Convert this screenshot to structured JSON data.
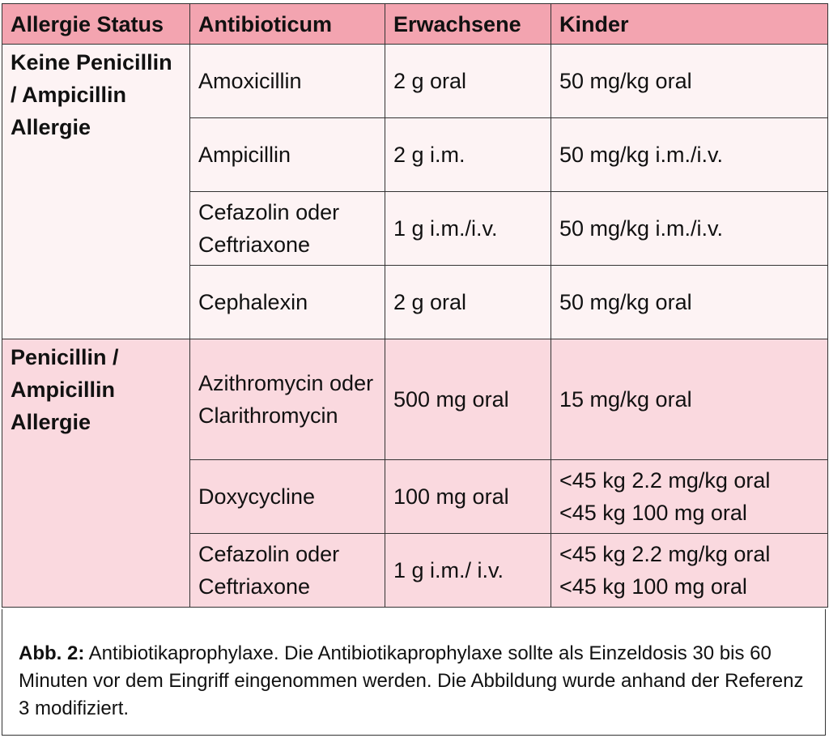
{
  "colors": {
    "header": "#f3a4b0",
    "section1": "#fdf3f4",
    "section2": "#fad9df"
  },
  "headers": [
    "Allergie Status",
    "Antibioticum",
    "Erwachsene",
    "Kinder"
  ],
  "groups": [
    {
      "status": "Keine Penicillin / Ampicillin Allergie",
      "rows": [
        {
          "drug": "Amoxicillin",
          "adult": "2 g oral",
          "child": [
            "50 mg/kg oral"
          ]
        },
        {
          "drug": "Ampicillin",
          "adult": "2 g i.m.",
          "child": [
            "50 mg/kg i.m./i.v."
          ]
        },
        {
          "drug": "Cefazolin oder Ceftriaxone",
          "adult": "1 g i.m./i.v.",
          "child": [
            "50 mg/kg i.m./i.v."
          ]
        },
        {
          "drug": "Cephalexin",
          "adult": "2 g oral",
          "child": [
            "50 mg/kg oral"
          ]
        }
      ]
    },
    {
      "status": "Penicillin / Ampicillin Allergie",
      "rows": [
        {
          "drug": "Azithromycin oder Clarithromycin",
          "adult": "500 mg oral",
          "child": [
            "15 mg/kg oral"
          ]
        },
        {
          "drug": "Doxycycline",
          "adult": "100 mg oral",
          "child": [
            "<45 kg 2.2 mg/kg oral",
            "<45 kg 100 mg oral"
          ]
        },
        {
          "drug": "Cefazolin oder Ceftriaxone",
          "adult": "1 g i.m./ i.v.",
          "child": [
            "<45 kg 2.2 mg/kg oral",
            "<45 kg 100 mg oral"
          ]
        }
      ]
    }
  ],
  "caption": {
    "label": "Abb. 2:",
    "text": " Antibiotikaprophylaxe. Die Antibiotikaprophylaxe sollte als Einzeldosis 30 bis 60 Minuten vor dem Eingriff eingenommen werden. Die Abbildung wurde anhand der Referenz 3 modifiziert."
  }
}
